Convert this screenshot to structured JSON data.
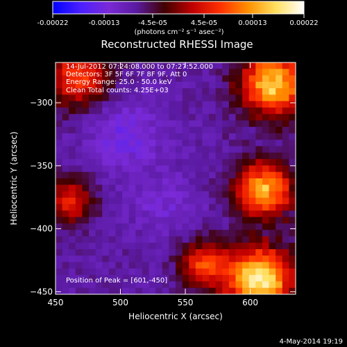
{
  "colorbar": {
    "tick_labels": [
      "-0.00022",
      "-0.00013",
      "-4.5e-05",
      "4.5e-05",
      "0.00013",
      "0.00022"
    ],
    "tick_values": [
      -0.00022,
      -0.00013,
      -4.5e-05,
      4.5e-05,
      0.00013,
      0.00022
    ],
    "range": [
      -0.00022,
      0.00022
    ],
    "units_label": "(photons cm⁻² s⁻¹ asec⁻²)",
    "colors": [
      "#0000ff",
      "#4b20ff",
      "#7a2ad6",
      "#5a1aa0",
      "#400000",
      "#c00000",
      "#ff3000",
      "#ff9000",
      "#ffe060",
      "#ffffff"
    ]
  },
  "chart_data": {
    "type": "heatmap",
    "title": "Reconstructed RHESSI Image",
    "xlabel": "Heliocentric X (arcsec)",
    "ylabel": "Heliocentric Y (arcsec)",
    "xlim": [
      450,
      635
    ],
    "ylim": [
      -452,
      -268
    ],
    "x_ticks": [
      450,
      500,
      550,
      600
    ],
    "y_ticks": [
      -300,
      -350,
      -400,
      -450
    ],
    "x_tick_labels": [
      "450",
      "500",
      "550",
      "600"
    ],
    "y_tick_labels": [
      "−300",
      "−350",
      "−400",
      "−450"
    ],
    "annotations": [
      "14-Jul-2012 07:24:08.000 to 07:27:52.000",
      "Detectors: 3F 5F 6F 7F 8F 9F, Att 0",
      "Energy Range: 25.0 - 50.0 keV",
      "Clean     Total counts: 4.25E+03"
    ],
    "peak_label": "Position of Peak = [601,-450]",
    "peak": [
      601,
      -450
    ]
  },
  "footer": {
    "date": "4-May-2014 19:19"
  }
}
